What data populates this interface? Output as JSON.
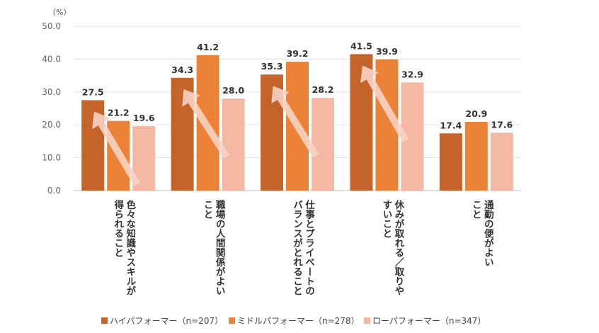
{
  "chart_data": {
    "type": "bar",
    "unit_label": "（%）",
    "ylim": [
      0,
      50
    ],
    "yticks": [
      "0.0",
      "10.0",
      "20.0",
      "30.0",
      "40.0",
      "50.0"
    ],
    "grid": true,
    "legend_position": "bottom",
    "categories": [
      [
        "色々な知識やスキルが",
        "得られること"
      ],
      [
        "職場の人間関係がよい",
        "こと"
      ],
      [
        "仕事とプライベートの",
        "バランスがとれること"
      ],
      [
        "休みが取れる／取りや",
        "すいこと"
      ],
      [
        "通勤の便がよい",
        "こと"
      ]
    ],
    "series": [
      {
        "name": "ハイパフォーマー（n=207）",
        "color": "#C4642A",
        "values": [
          27.5,
          34.3,
          35.3,
          41.5,
          17.4
        ],
        "labels": [
          "27.5",
          "34.3",
          "35.3",
          "41.5",
          "17.4"
        ]
      },
      {
        "name": "ミドルパフォーマー（n=278）",
        "color": "#EC8237",
        "values": [
          21.2,
          41.2,
          39.2,
          39.9,
          20.9
        ],
        "labels": [
          "21.2",
          "41.2",
          "39.2",
          "39.9",
          "20.9"
        ]
      },
      {
        "name": "ローパフォーマー（n=347）",
        "color": "#F4B9A4",
        "values": [
          19.6,
          28.0,
          28.2,
          32.9,
          17.6
        ],
        "labels": [
          "19.6",
          "28.0",
          "28.2",
          "32.9",
          "17.6"
        ]
      }
    ],
    "trend_arrows": [
      {
        "from": 19.6,
        "to": 27.5,
        "direction": "low-to-high"
      },
      {
        "from": 28.0,
        "to": 34.3,
        "direction": "low-to-high"
      },
      {
        "from": 28.2,
        "to": 35.3,
        "direction": "low-to-high"
      },
      {
        "from": 32.9,
        "to": 41.5,
        "direction": "low-to-high"
      }
    ],
    "arrow_color": "#F7D3C4"
  }
}
